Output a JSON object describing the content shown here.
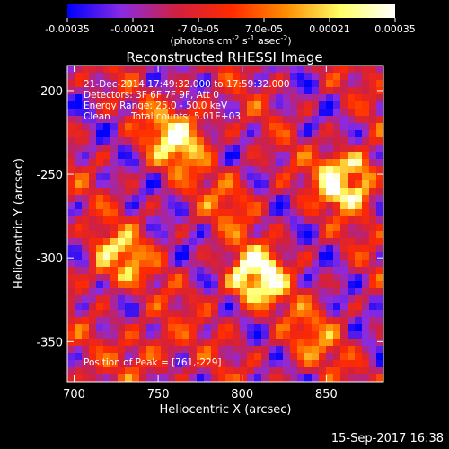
{
  "figure": {
    "title": "Reconstructed RHESSI Image",
    "timestamp": "15-Sep-2017 16:38"
  },
  "colorbar": {
    "ticks": [
      "-0.00035",
      "-0.00021",
      "-7.0e-05",
      "7.0e-05",
      "0.00021",
      "0.00035"
    ],
    "tick_values": [
      -0.00035,
      -0.00021,
      -7e-05,
      7e-05,
      0.00021,
      0.00035
    ],
    "range": [
      -0.00035,
      0.00035
    ],
    "units_prefix": "(photons cm",
    "units_exp1": "-2",
    "units_mid1": " s",
    "units_exp2": "-1",
    "units_mid2": " asec",
    "units_exp3": "-2",
    "units_suffix": ")",
    "colors": [
      "#0000ff",
      "#8a2be2",
      "#d02040",
      "#ff2a00",
      "#ff8c00",
      "#ffff66",
      "#ffffff"
    ]
  },
  "annotations": {
    "time_range": "21-Dec-2014 17:49:32.000 to 17:59:32.000",
    "detectors": "Detectors: 3F 6F 7F 9F, Att 0",
    "energy_range": "Energy Range: 25.0 - 50.0 keV",
    "clean_label": "Clean",
    "total_counts": "Total counts: 5.01E+03",
    "peak_position": "Position of Peak = [761,-229]"
  },
  "chart_data": {
    "type": "heatmap",
    "title": "Reconstructed RHESSI Image",
    "xlabel": "Heliocentric X (arcsec)",
    "ylabel": "Heliocentric Y (arcsec)",
    "xlim": [
      696,
      884
    ],
    "ylim": [
      -374,
      -185
    ],
    "x_ticks": [
      700,
      750,
      800,
      850
    ],
    "y_ticks": [
      -200,
      -250,
      -300,
      -350
    ],
    "colorscale": "rhessi_fire",
    "peak_location": [
      761,
      -229
    ],
    "sources": [
      {
        "x": 762,
        "y": -228,
        "strength": 1.0
      },
      {
        "x": 808,
        "y": -312,
        "strength": 0.85
      },
      {
        "x": 862,
        "y": -253,
        "strength": 0.7
      },
      {
        "x": 840,
        "y": -350,
        "strength": 0.45
      },
      {
        "x": 725,
        "y": -300,
        "strength": 0.5
      },
      {
        "x": 745,
        "y": -355,
        "strength": 0.45
      },
      {
        "x": 795,
        "y": -265,
        "strength": 0.35
      }
    ],
    "ring_sources": [
      {
        "x": 862,
        "y": -253,
        "r": 11,
        "strength": 0.55
      },
      {
        "x": 808,
        "y": -312,
        "r": 10,
        "strength": 0.4
      },
      {
        "x": 725,
        "y": -302,
        "r": 10,
        "strength": 0.35
      }
    ],
    "background_level": -0.15
  }
}
